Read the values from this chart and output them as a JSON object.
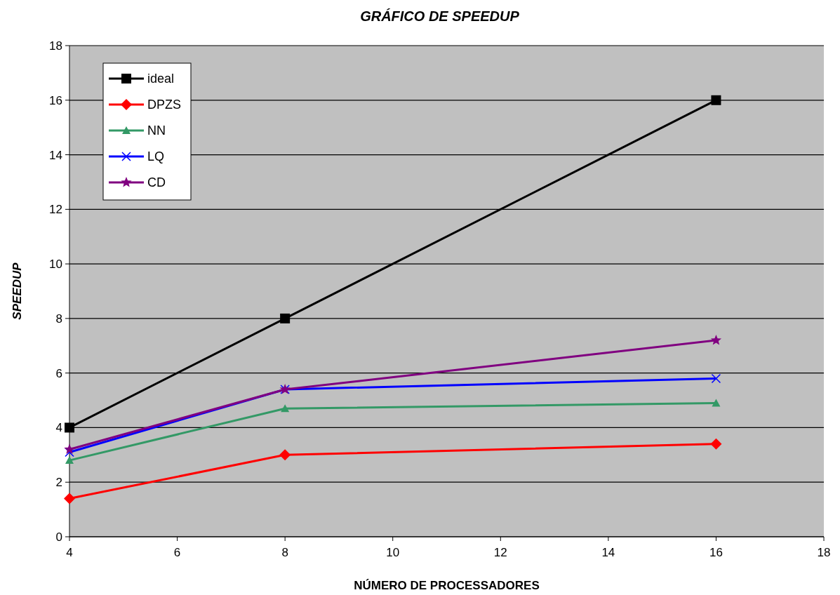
{
  "chart_data": {
    "type": "line",
    "title": "GRÁFICO DE SPEEDUP",
    "xlabel": "NÚMERO DE PROCESSADORES",
    "ylabel": "SPEEDUP",
    "x": [
      4,
      8,
      16
    ],
    "series": [
      {
        "name": "ideal",
        "color": "#000000",
        "marker": "square",
        "values": [
          4,
          8,
          16
        ]
      },
      {
        "name": "DPZS",
        "color": "#ff0000",
        "marker": "diamond",
        "values": [
          1.4,
          3.0,
          3.4
        ]
      },
      {
        "name": "NN",
        "color": "#339966",
        "marker": "triangle",
        "values": [
          2.8,
          4.7,
          4.9
        ]
      },
      {
        "name": "LQ",
        "color": "#0000ff",
        "marker": "cross",
        "values": [
          3.1,
          5.4,
          5.8
        ]
      },
      {
        "name": "CD",
        "color": "#800080",
        "marker": "star",
        "values": [
          3.2,
          5.4,
          7.2
        ]
      }
    ],
    "xlim": [
      4,
      18
    ],
    "xticks": [
      4,
      6,
      8,
      10,
      12,
      14,
      16,
      18
    ],
    "ylim": [
      0,
      18
    ],
    "yticks": [
      0,
      2,
      4,
      6,
      8,
      10,
      12,
      14,
      16,
      18
    ],
    "grid": "y",
    "legend": "top left",
    "line_style": "solid"
  }
}
